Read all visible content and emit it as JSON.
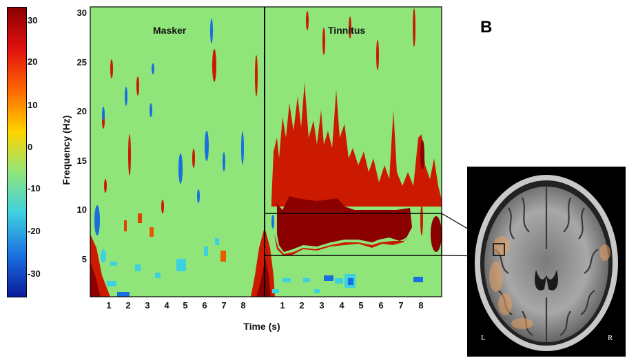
{
  "figure": {
    "panel_letter": "B",
    "colorbar": {
      "ticks": [
        "30",
        "20",
        "10",
        "0",
        "-10",
        "-20",
        "-30"
      ],
      "colors": [
        "#8b0000",
        "#e01010",
        "#ff6a00",
        "#ffd400",
        "#8fe57a",
        "#3fd0e0",
        "#1a6fe0",
        "#0a1a9a"
      ]
    },
    "spectrogram": {
      "left_title": "Masker",
      "right_title": "Tinnitus",
      "background_color": "#8fe57a",
      "ylabel": "Frequency (Hz)",
      "xlabel": "Time (s)",
      "yticks": [
        "30",
        "25",
        "20",
        "15",
        "10",
        "5"
      ],
      "xticks": [
        "1",
        "2",
        "3",
        "4",
        "5",
        "6",
        "7",
        "8"
      ]
    },
    "mri": {
      "left_label": "L",
      "right_label": "R"
    }
  },
  "chart_data": {
    "type": "heatmap",
    "panels": [
      "Masker",
      "Tinnitus"
    ],
    "xlabel": "Time (s)",
    "ylabel": "Frequency (Hz)",
    "xlim": [
      0,
      9
    ],
    "ylim": [
      1,
      31
    ],
    "color_range": [
      -35,
      33
    ],
    "highlight_band": {
      "panel": "Tinnitus",
      "freq_hz": [
        5.5,
        9.7
      ],
      "time_s": [
        0,
        9
      ]
    }
  }
}
